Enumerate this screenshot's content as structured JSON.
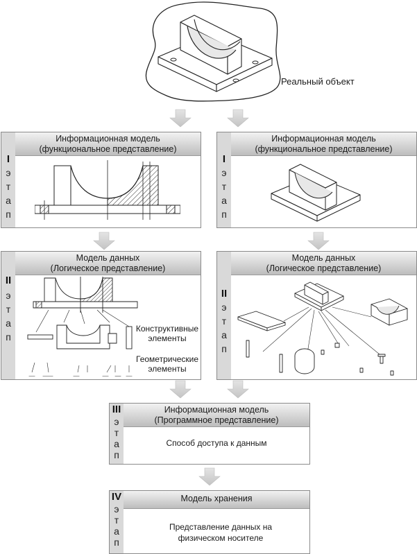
{
  "top": {
    "real_object_label": "Реальный объект"
  },
  "stage_letters": [
    "э",
    "т",
    "а",
    "п"
  ],
  "panels": {
    "p1_left": {
      "roman": "I",
      "title1": "Информационная модель",
      "title2": "(функциональное представление)"
    },
    "p1_right": {
      "roman": "I",
      "title1": "Информационная модель",
      "title2": "(функциональное представление)"
    },
    "p2_left": {
      "roman": "II",
      "title1": "Модель данных",
      "title2": "(Логическое представление)",
      "label_constructive": "Конструктивные элементы",
      "label_geometric": "Геометрические элементы"
    },
    "p2_right": {
      "roman": "II",
      "title1": "Модель данных",
      "title2": "(Логическое представление)"
    },
    "p3": {
      "roman": "III",
      "title1": "Информационная модель",
      "title2": "(Программное представление)",
      "body": "Способ доступа к данным"
    },
    "p4": {
      "roman": "IV",
      "title1": "Модель хранения",
      "body": "Представление данных на физическом носителе"
    }
  }
}
